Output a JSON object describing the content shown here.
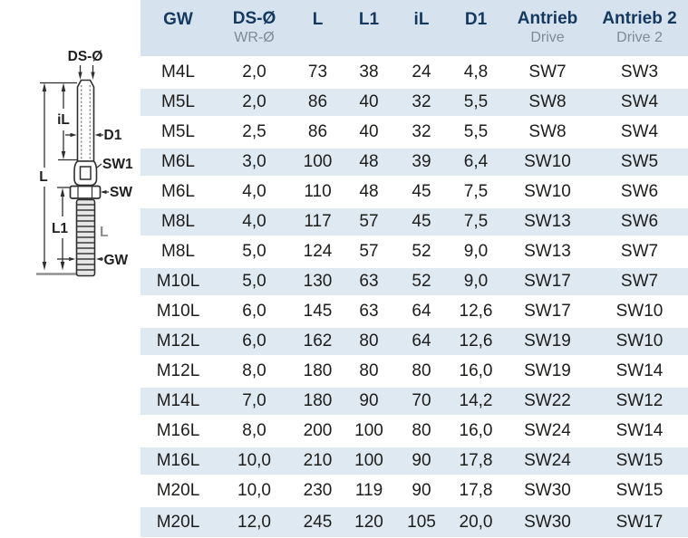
{
  "diagram": {
    "labels": {
      "ds_diameter": "DS-Ø",
      "inner_length": "iL",
      "d1": "D1",
      "sw1": "SW1",
      "overall_length": "L",
      "sw": "SW",
      "l1": "L1",
      "thread_length": "L",
      "gw": "GW"
    }
  },
  "table": {
    "columns": [
      {
        "label": "GW",
        "sub": ""
      },
      {
        "label": "DS-Ø",
        "sub": "WR-Ø"
      },
      {
        "label": "L",
        "sub": ""
      },
      {
        "label": "L1",
        "sub": ""
      },
      {
        "label": "iL",
        "sub": ""
      },
      {
        "label": "D1",
        "sub": ""
      },
      {
        "label": "Antrieb",
        "sub": "Drive"
      },
      {
        "label": "Antrieb 2",
        "sub": "Drive 2"
      }
    ],
    "rows": [
      [
        "M4L",
        "2,0",
        "73",
        "38",
        "24",
        "4,8",
        "SW7",
        "SW3"
      ],
      [
        "M5L",
        "2,0",
        "86",
        "40",
        "32",
        "5,5",
        "SW8",
        "SW4"
      ],
      [
        "M5L",
        "2,5",
        "86",
        "40",
        "32",
        "5,5",
        "SW8",
        "SW4"
      ],
      [
        "M6L",
        "3,0",
        "100",
        "48",
        "39",
        "6,4",
        "SW10",
        "SW5"
      ],
      [
        "M6L",
        "4,0",
        "110",
        "48",
        "45",
        "7,5",
        "SW10",
        "SW6"
      ],
      [
        "M8L",
        "4,0",
        "117",
        "57",
        "45",
        "7,5",
        "SW13",
        "SW6"
      ],
      [
        "M8L",
        "5,0",
        "124",
        "57",
        "52",
        "9,0",
        "SW13",
        "SW7"
      ],
      [
        "M10L",
        "5,0",
        "130",
        "63",
        "52",
        "9,0",
        "SW17",
        "SW7"
      ],
      [
        "M10L",
        "6,0",
        "145",
        "63",
        "64",
        "12,6",
        "SW17",
        "SW10"
      ],
      [
        "M12L",
        "6,0",
        "162",
        "80",
        "64",
        "12,6",
        "SW19",
        "SW10"
      ],
      [
        "M12L",
        "8,0",
        "180",
        "80",
        "80",
        "16,0",
        "SW19",
        "SW14"
      ],
      [
        "M14L",
        "7,0",
        "180",
        "90",
        "70",
        "14,2",
        "SW22",
        "SW12"
      ],
      [
        "M16L",
        "8,0",
        "200",
        "100",
        "80",
        "16,0",
        "SW24",
        "SW14"
      ],
      [
        "M16L",
        "10,0",
        "210",
        "100",
        "90",
        "17,8",
        "SW24",
        "SW15"
      ],
      [
        "M20L",
        "10,0",
        "230",
        "119",
        "90",
        "17,8",
        "SW30",
        "SW15"
      ],
      [
        "M20L",
        "12,0",
        "245",
        "120",
        "105",
        "20,0",
        "SW30",
        "SW17"
      ]
    ]
  },
  "colors": {
    "header_bg": "#d6e2ee",
    "row_alt_bg": "#dfe9f2",
    "header_text": "#14385e",
    "sub_text": "#7d8b96",
    "body_text": "#1d1d1b",
    "line_color": "#2f2f2f"
  }
}
